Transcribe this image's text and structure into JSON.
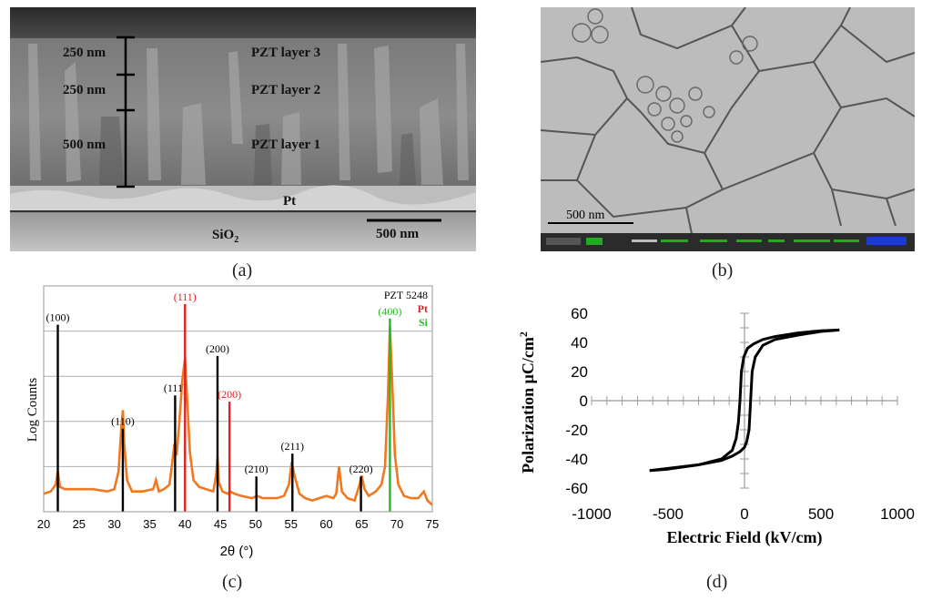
{
  "panel_a": {
    "label": "(a)",
    "dims": [
      "250 nm",
      "250 nm",
      "500 nm"
    ],
    "layers": [
      "PZT layer 3",
      "PZT layer 2",
      "PZT layer 1"
    ],
    "pt_label": "Pt",
    "sio2_label": "SiO",
    "sio2_sub": "2",
    "scalebar": "500 nm"
  },
  "panel_b": {
    "label": "(b)",
    "scalebar": "500 nm"
  },
  "panel_c": {
    "label": "(c)",
    "chart_data": {
      "type": "line",
      "xlabel": "2θ (°)",
      "ylabel": "Log Counts",
      "xlim": [
        20,
        75
      ],
      "xticks": [
        20,
        25,
        30,
        35,
        40,
        45,
        50,
        55,
        60,
        65,
        70,
        75
      ],
      "legend": [
        {
          "name": "PZT 5248",
          "color": "#000000"
        },
        {
          "name": "Pt",
          "color": "#e02020"
        },
        {
          "name": "Si",
          "color": "#22bb22"
        }
      ],
      "reference_lines": [
        {
          "x": 22.0,
          "label": "(100)",
          "phase": "PZT",
          "height": 0.9
        },
        {
          "x": 31.2,
          "label": "(110)",
          "phase": "PZT",
          "height": 0.4
        },
        {
          "x": 38.6,
          "label": "(111)",
          "phase": "PZT",
          "height": 0.56
        },
        {
          "x": 40.0,
          "label": "(111)",
          "phase": "Pt",
          "height": 1.0
        },
        {
          "x": 44.6,
          "label": "(200)",
          "phase": "PZT",
          "height": 0.75
        },
        {
          "x": 46.3,
          "label": "(200)",
          "phase": "Pt",
          "height": 0.53
        },
        {
          "x": 50.1,
          "label": "(210)",
          "phase": "PZT",
          "height": 0.17
        },
        {
          "x": 55.2,
          "label": "(211)",
          "phase": "PZT",
          "height": 0.28
        },
        {
          "x": 64.9,
          "label": "(220)",
          "phase": "PZT",
          "height": 0.17
        },
        {
          "x": 69.0,
          "label": "(400)",
          "phase": "Si",
          "height": 0.93
        }
      ],
      "series": [
        {
          "color": "#f07820",
          "x": [
            20,
            21,
            21.7,
            22,
            22.3,
            23,
            25,
            27,
            29,
            30,
            30.6,
            31,
            31.2,
            31.4,
            31.8,
            32.5,
            34,
            35.5,
            35.9,
            36.3,
            37,
            37.8,
            38.2,
            38.5,
            38.8,
            39.2,
            39.6,
            40,
            40.3,
            40.7,
            41.2,
            42,
            43,
            44,
            44.4,
            44.6,
            44.8,
            45.3,
            46,
            46.4,
            47,
            48,
            49.5,
            50.2,
            51,
            52,
            53,
            54,
            54.7,
            55.1,
            55.5,
            56.2,
            57,
            58,
            59,
            60,
            61,
            61.4,
            61.8,
            62.2,
            63,
            64,
            64.6,
            65,
            65.4,
            66,
            67,
            67.8,
            68.3,
            68.7,
            69,
            69.3,
            69.7,
            70.2,
            71,
            72,
            73,
            73.8,
            74.3,
            75
          ],
          "y": [
            0.08,
            0.09,
            0.12,
            0.18,
            0.11,
            0.1,
            0.1,
            0.1,
            0.09,
            0.1,
            0.18,
            0.38,
            0.45,
            0.3,
            0.14,
            0.09,
            0.09,
            0.1,
            0.14,
            0.09,
            0.1,
            0.12,
            0.22,
            0.3,
            0.25,
            0.4,
            0.58,
            0.68,
            0.5,
            0.26,
            0.14,
            0.11,
            0.1,
            0.09,
            0.16,
            0.24,
            0.13,
            0.09,
            0.08,
            0.09,
            0.08,
            0.07,
            0.06,
            0.07,
            0.06,
            0.06,
            0.06,
            0.07,
            0.12,
            0.22,
            0.16,
            0.08,
            0.06,
            0.05,
            0.06,
            0.07,
            0.06,
            0.08,
            0.2,
            0.09,
            0.06,
            0.05,
            0.11,
            0.16,
            0.1,
            0.07,
            0.09,
            0.12,
            0.2,
            0.5,
            0.82,
            0.6,
            0.25,
            0.12,
            0.07,
            0.06,
            0.06,
            0.09,
            0.05,
            0.03
          ]
        }
      ]
    }
  },
  "panel_d": {
    "label": "(d)",
    "chart_data": {
      "type": "line",
      "xlabel": "Electric Field (kV/cm)",
      "ylabel": "Polarization μC/cm",
      "ylabel_sup": "2",
      "xlim": [
        -1000,
        1000
      ],
      "ylim": [
        -60,
        60
      ],
      "xticks": [
        -1000,
        -500,
        0,
        500,
        1000
      ],
      "yticks": [
        60,
        40,
        20,
        0,
        -20,
        -40,
        -60
      ],
      "series": [
        {
          "name": "upper branch",
          "x": [
            -620,
            -500,
            -300,
            -150,
            -80,
            -55,
            -40,
            -30,
            -20,
            -5,
            20,
            60,
            120,
            200,
            350,
            500,
            620
          ],
          "y": [
            -48,
            -47,
            -44,
            -40,
            -34,
            -26,
            -15,
            0,
            20,
            30,
            36,
            39,
            42,
            44,
            46.5,
            48,
            48.5
          ]
        },
        {
          "name": "lower branch",
          "x": [
            620,
            500,
            350,
            200,
            120,
            70,
            50,
            40,
            30,
            15,
            0,
            -30,
            -80,
            -150,
            -300,
            -500,
            -620
          ],
          "y": [
            48.5,
            47.5,
            45,
            42,
            38,
            30,
            20,
            0,
            -20,
            -28,
            -32,
            -35,
            -38,
            -41,
            -44,
            -46.5,
            -48
          ]
        }
      ]
    }
  }
}
